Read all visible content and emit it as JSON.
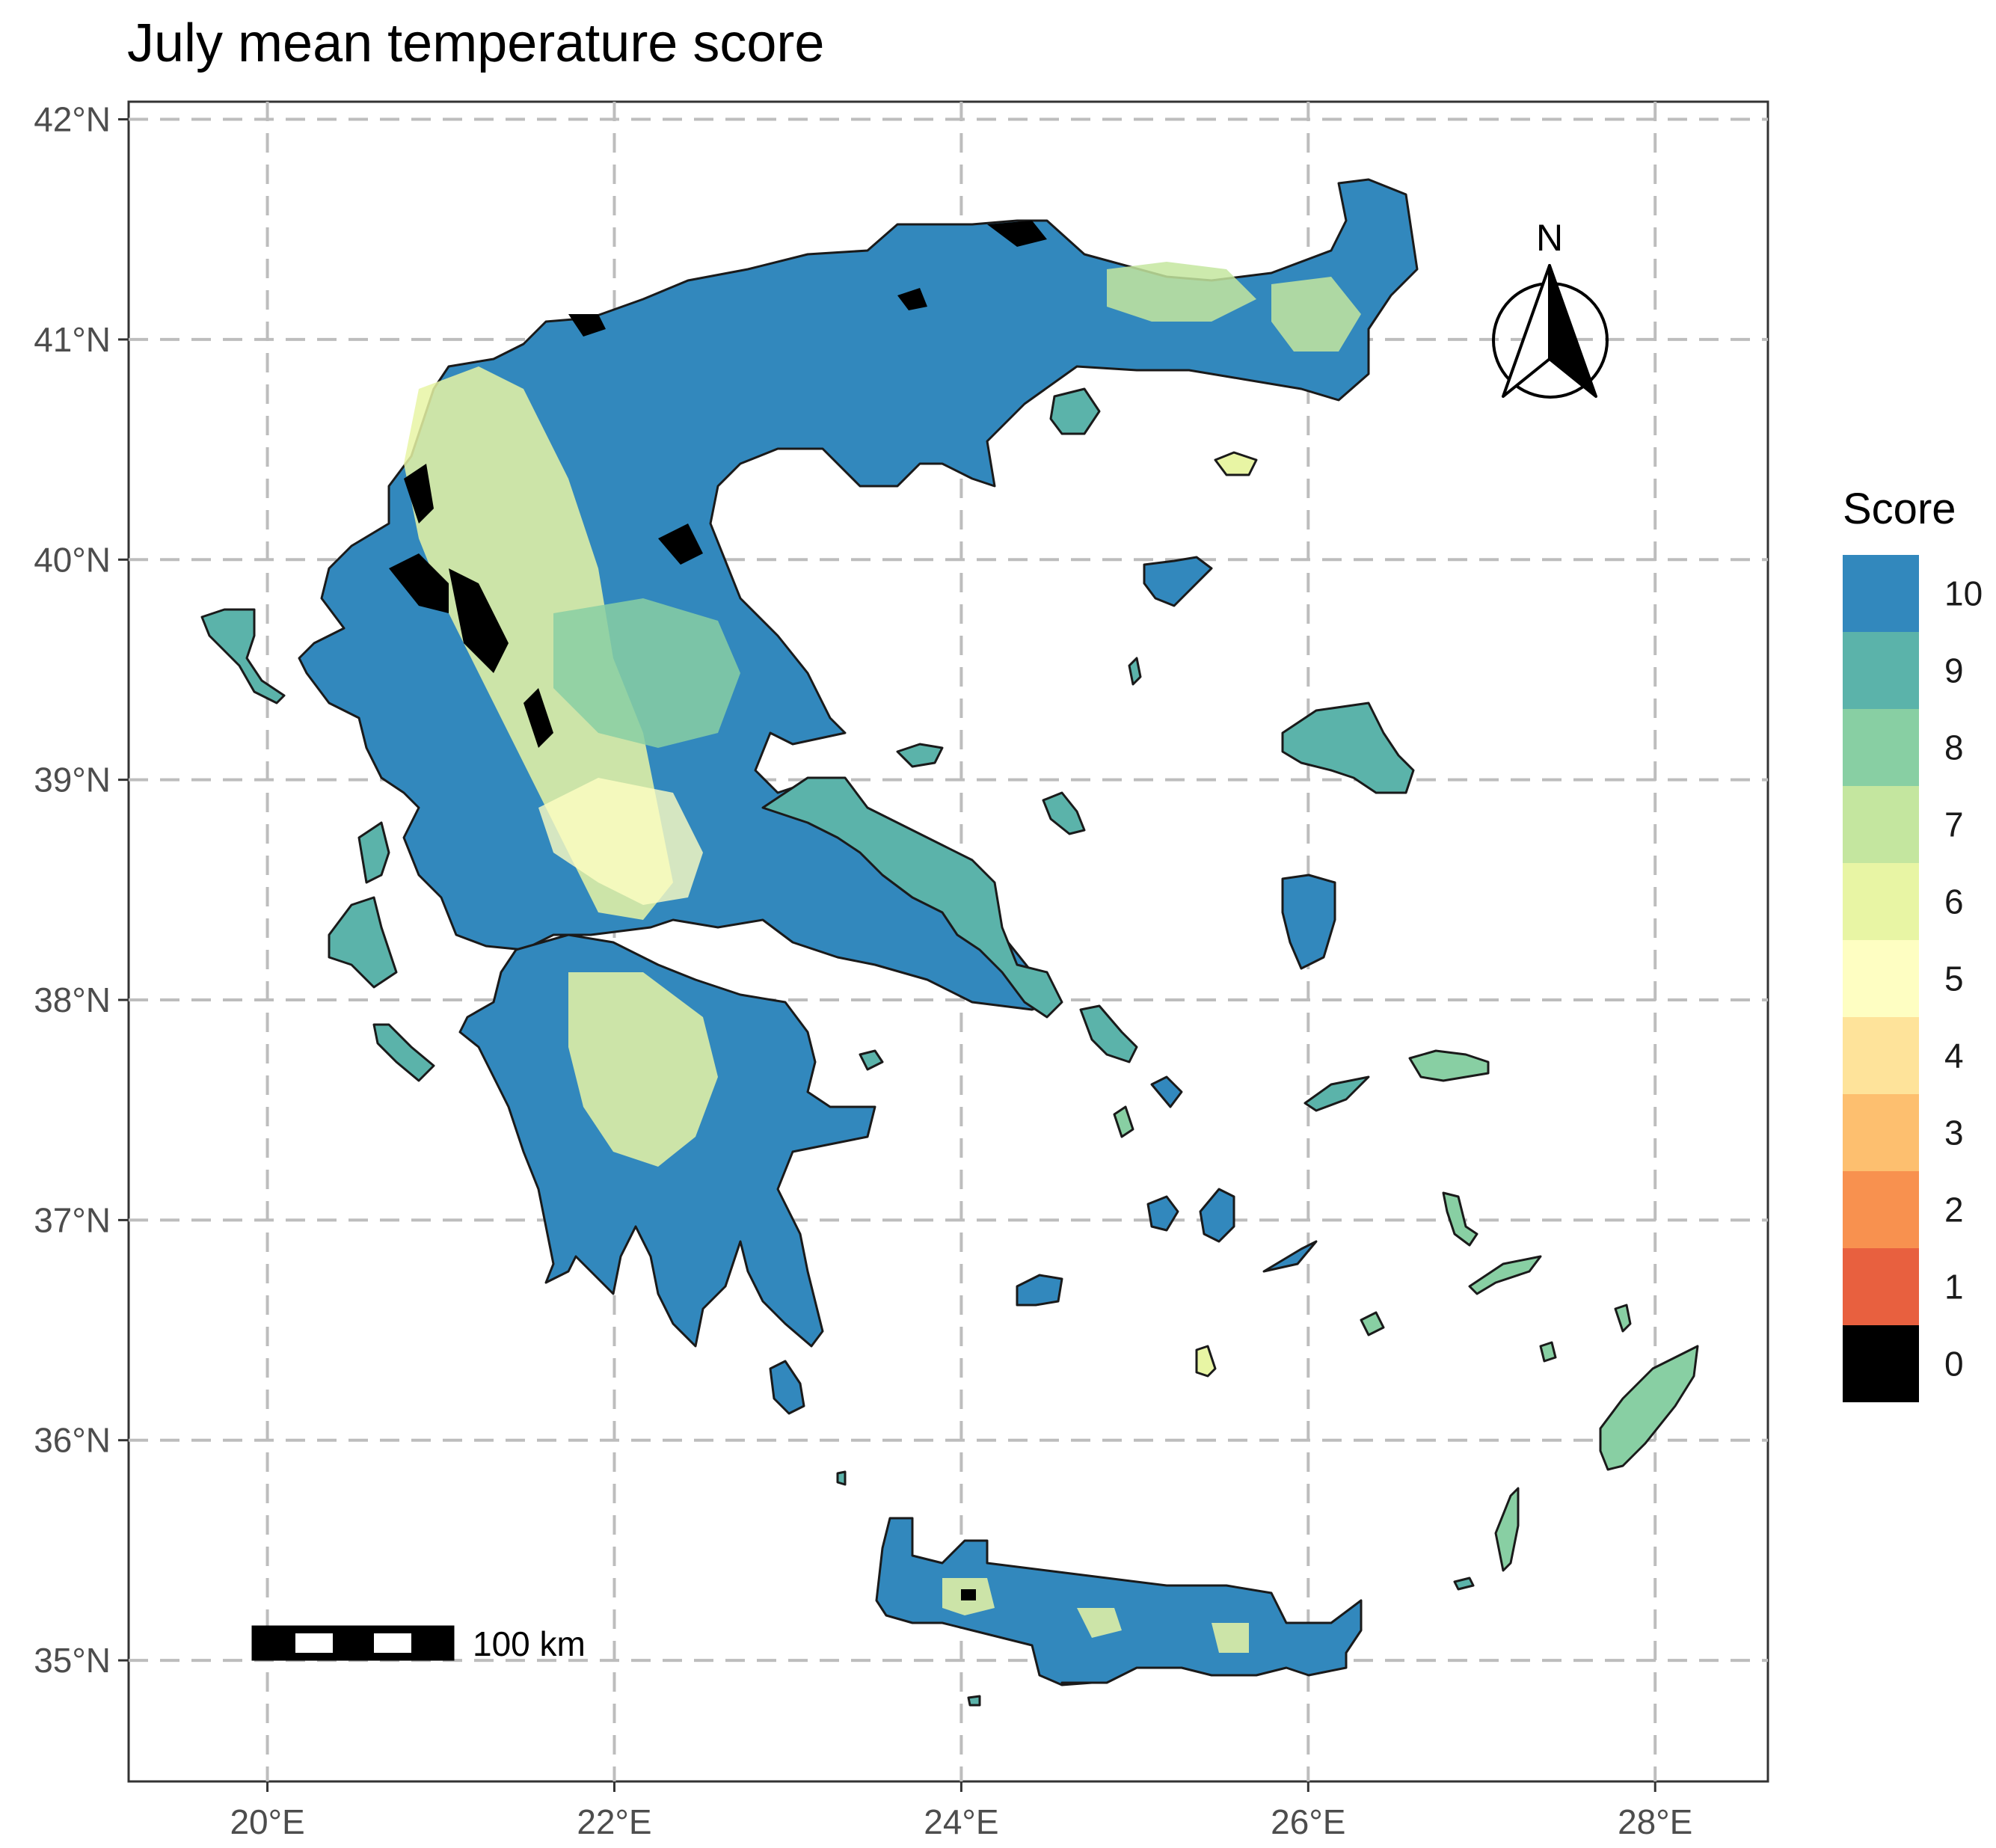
{
  "title": "July mean temperature score",
  "map": {
    "lon_range": [
      19.2,
      28.65
    ],
    "lat_range": [
      34.45,
      42.08
    ],
    "x_ticks": [
      {
        "value": 20,
        "label": "20°E"
      },
      {
        "value": 22,
        "label": "22°E"
      },
      {
        "value": 24,
        "label": "24°E"
      },
      {
        "value": 26,
        "label": "26°E"
      },
      {
        "value": 28,
        "label": "28°E"
      }
    ],
    "y_ticks": [
      {
        "value": 42,
        "label": "42°N"
      },
      {
        "value": 41,
        "label": "41°N"
      },
      {
        "value": 40,
        "label": "40°N"
      },
      {
        "value": 39,
        "label": "39°N"
      },
      {
        "value": 38,
        "label": "38°N"
      },
      {
        "value": 37,
        "label": "37°N"
      },
      {
        "value": 36,
        "label": "36°N"
      },
      {
        "value": 35,
        "label": "35°N"
      }
    ],
    "grid": "dashed",
    "scale_bar_label": "100 km",
    "north_arrow_label": "N"
  },
  "legend": {
    "title": "Score",
    "items": [
      {
        "label": "10",
        "color": "#3288bd"
      },
      {
        "label": "9",
        "color": "#5bb3aa"
      },
      {
        "label": "8",
        "color": "#88cfa3"
      },
      {
        "label": "7",
        "color": "#c4e69f"
      },
      {
        "label": "6",
        "color": "#e8f5a4"
      },
      {
        "label": "5",
        "color": "#fefec2"
      },
      {
        "label": "4",
        "color": "#fee39a"
      },
      {
        "label": "3",
        "color": "#fdbf6f"
      },
      {
        "label": "2",
        "color": "#f8914f"
      },
      {
        "label": "1",
        "color": "#e8603f"
      },
      {
        "label": "0",
        "color": "#000000"
      }
    ]
  }
}
